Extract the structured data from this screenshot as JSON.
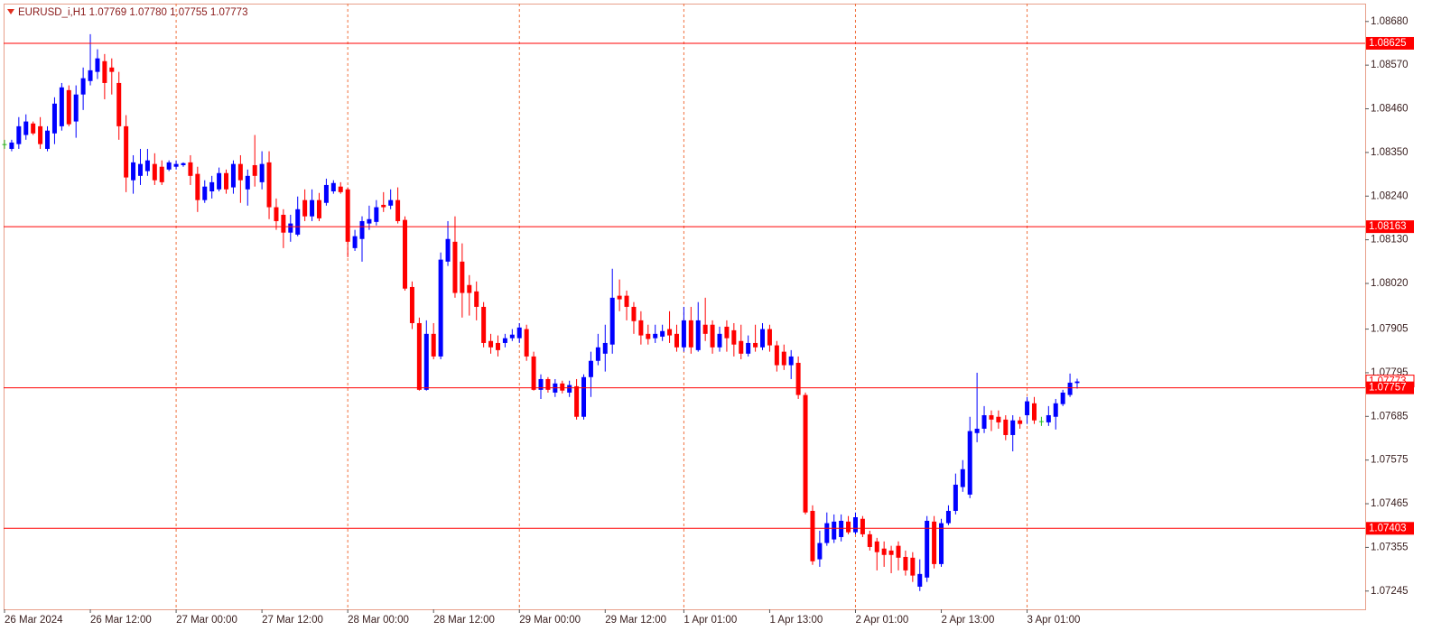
{
  "chart_data": {
    "type": "candlestick",
    "title": "EURUSD_i,H1  1.07769 1.07780 1.07755 1.07773",
    "categories": [
      "26 Mar 2024",
      null,
      null,
      null,
      null,
      null,
      null,
      null,
      null,
      null,
      null,
      null,
      "26 Mar 12:00",
      null,
      null,
      null,
      null,
      null,
      null,
      null,
      null,
      null,
      null,
      null,
      "27 Mar 00:00",
      null,
      null,
      null,
      null,
      null,
      null,
      null,
      null,
      null,
      null,
      null,
      "27 Mar 12:00",
      null,
      null,
      null,
      null,
      null,
      null,
      null,
      null,
      null,
      null,
      null,
      "28 Mar 00:00",
      null,
      null,
      null,
      null,
      null,
      null,
      null,
      null,
      null,
      null,
      null,
      "28 Mar 12:00",
      null,
      null,
      null,
      null,
      null,
      null,
      null,
      null,
      null,
      null,
      null,
      "29 Mar 00:00",
      null,
      null,
      null,
      null,
      null,
      null,
      null,
      null,
      null,
      null,
      null,
      "29 Mar 12:00",
      null,
      null,
      null,
      null,
      null,
      null,
      null,
      null,
      null,
      null,
      "1 Apr 01:00",
      null,
      null,
      null,
      null,
      null,
      null,
      null,
      null,
      null,
      null,
      null,
      "1 Apr 13:00",
      null,
      null,
      null,
      null,
      null,
      null,
      null,
      null,
      null,
      null,
      null,
      "2 Apr 01:00",
      null,
      null,
      null,
      null,
      null,
      null,
      null,
      null,
      null,
      null,
      null,
      "2 Apr 13:00",
      null,
      null,
      null,
      null,
      null,
      null,
      null,
      null,
      null,
      null,
      null,
      "3 Apr 01:00",
      null,
      null,
      null,
      null,
      null,
      null,
      null
    ],
    "open": [
      1.08371,
      1.08359,
      1.08371,
      1.08394,
      1.08423,
      1.08416,
      1.08359,
      1.08398,
      1.08416,
      1.08507,
      1.08428,
      1.08496,
      1.0853,
      1.08553,
      1.0858,
      1.08564,
      1.08525,
      1.08416,
      1.0828,
      1.08291,
      1.08303,
      1.08321,
      1.08314,
      1.08307,
      1.08314,
      1.08318,
      1.08325,
      1.08296,
      1.0823,
      1.08252,
      1.08257,
      1.08298,
      1.08262,
      1.08321,
      1.08257,
      1.08318,
      1.08275,
      1.08325,
      1.08212,
      1.08193,
      1.08148,
      1.08143,
      1.0823,
      1.08189,
      1.0823,
      1.08223,
      1.08252,
      1.08264,
      1.08257,
      1.08109,
      1.08132,
      1.08171,
      1.08175,
      1.08218,
      1.08216,
      1.0823,
      1.0818,
      1.08011,
      1.0792,
      1.07752,
      1.07893,
      1.07836,
      1.08075,
      1.08125,
      1.08075,
      1.08016,
      1.08,
      1.07961,
      1.07875,
      1.0787,
      1.0787,
      1.07882,
      1.07882,
      1.07905,
      1.07836,
      1.07752,
      1.07779,
      1.07745,
      1.07768,
      1.07745,
      1.07761,
      1.07684,
      1.07784,
      1.07825,
      1.07843,
      1.07866,
      1.07989,
      1.07989,
      1.07961,
      1.07927,
      1.07893,
      1.07882,
      1.07886,
      1.07905,
      1.07893,
      1.07859,
      1.07927,
      1.07852,
      1.07916,
      1.07916,
      1.07859,
      1.07911,
      1.07902,
      1.07875,
      1.07843,
      1.0787,
      1.07859,
      1.07905,
      1.07864,
      1.07848,
      1.07814,
      1.0782,
      1.07739,
      1.07447,
      1.07325,
      1.07366,
      1.07375,
      1.07381,
      1.0742,
      1.07393,
      1.07427,
      1.07388,
      1.0737,
      1.07352,
      1.07347,
      1.07359,
      1.07331,
      1.07329,
      1.07256,
      1.07279,
      1.0742,
      1.07313,
      1.07416,
      1.07447,
      1.07507,
      1.07488,
      1.07643,
      1.07654,
      1.07688,
      1.07684,
      1.07677,
      1.07638,
      1.07675,
      1.07688,
      1.07718,
      1.07673,
      1.0767,
      1.07684,
      1.07716,
      1.07739,
      1.07769
    ],
    "high": [
      1.08382,
      1.08382,
      1.08439,
      1.08446,
      1.08428,
      1.08439,
      1.08416,
      1.08489,
      1.08525,
      1.08519,
      1.08519,
      1.08564,
      1.08648,
      1.0861,
      1.08598,
      1.08587,
      1.08553,
      1.08444,
      1.08343,
      1.08359,
      1.08359,
      1.08348,
      1.0833,
      1.0833,
      1.0833,
      1.08325,
      1.08343,
      1.08314,
      1.0828,
      1.08291,
      1.08312,
      1.08307,
      1.0833,
      1.08343,
      1.08307,
      1.08394,
      1.08353,
      1.08353,
      1.08234,
      1.08207,
      1.08193,
      1.08239,
      1.08257,
      1.08257,
      1.08248,
      1.08284,
      1.0828,
      1.08275,
      1.08262,
      1.08155,
      1.08189,
      1.08216,
      1.0823,
      1.0825,
      1.08257,
      1.08262,
      1.08189,
      1.08025,
      1.07934,
      1.07927,
      1.0792,
      1.08098,
      1.08177,
      1.08189,
      1.08121,
      1.08041,
      1.08025,
      1.07973,
      1.07893,
      1.07889,
      1.07893,
      1.07905,
      1.0792,
      1.07916,
      1.07848,
      1.07791,
      1.07784,
      1.07779,
      1.07775,
      1.07775,
      1.07779,
      1.07791,
      1.07848,
      1.07893,
      1.07916,
      1.08057,
      1.0803,
      1.08002,
      1.07973,
      1.0795,
      1.07916,
      1.07916,
      1.07916,
      1.0795,
      1.07916,
      1.07961,
      1.07961,
      1.07973,
      1.07984,
      1.07927,
      1.07911,
      1.07927,
      1.0792,
      1.07916,
      1.07889,
      1.07916,
      1.0792,
      1.07916,
      1.07875,
      1.07866,
      1.07852,
      1.07836,
      1.07745,
      1.07461,
      1.07397,
      1.07443,
      1.07438,
      1.07438,
      1.07434,
      1.07443,
      1.07434,
      1.07397,
      1.07379,
      1.0737,
      1.07359,
      1.0737,
      1.07347,
      1.07343,
      1.07325,
      1.07434,
      1.07434,
      1.07427,
      1.07461,
      1.07541,
      1.07575,
      1.07684,
      1.07795,
      1.07711,
      1.077,
      1.077,
      1.07688,
      1.07688,
      1.07684,
      1.07734,
      1.07734,
      1.07684,
      1.07711,
      1.07729,
      1.07752,
      1.07793,
      1.0778
    ],
    "low": [
      1.08359,
      1.08353,
      1.08359,
      1.08382,
      1.08394,
      1.08359,
      1.08353,
      1.08371,
      1.08405,
      1.08416,
      1.08387,
      1.08457,
      1.08519,
      1.08535,
      1.08484,
      1.08496,
      1.08382,
      1.0825,
      1.08246,
      1.08268,
      1.08291,
      1.08268,
      1.08268,
      1.08303,
      1.08307,
      1.08314,
      1.08268,
      1.082,
      1.08223,
      1.08234,
      1.08252,
      1.08246,
      1.08246,
      1.08223,
      1.08216,
      1.08264,
      1.08257,
      1.08182,
      1.08155,
      1.08109,
      1.08125,
      1.08139,
      1.08177,
      1.08177,
      1.08177,
      1.08216,
      1.08246,
      1.08246,
      1.08086,
      1.08102,
      1.08075,
      1.08155,
      1.08166,
      1.082,
      1.08207,
      1.08171,
      1.08002,
      1.07905,
      1.0775,
      1.0775,
      1.07829,
      1.07829,
      1.08064,
      1.07984,
      1.07934,
      1.07939,
      1.07927,
      1.07859,
      1.07843,
      1.07836,
      1.07859,
      1.07875,
      1.0787,
      1.07825,
      1.0775,
      1.07729,
      1.07745,
      1.07734,
      1.07743,
      1.07734,
      1.07677,
      1.07677,
      1.07734,
      1.07814,
      1.07798,
      1.07843,
      1.0795,
      1.07927,
      1.07893,
      1.07866,
      1.07866,
      1.0787,
      1.07875,
      1.0787,
      1.07848,
      1.07848,
      1.07843,
      1.07848,
      1.07875,
      1.07843,
      1.07848,
      1.07848,
      1.07836,
      1.07829,
      1.07836,
      1.07848,
      1.07852,
      1.07848,
      1.07798,
      1.07802,
      1.07779,
      1.07729,
      1.07438,
      1.07311,
      1.07306,
      1.07359,
      1.07366,
      1.0737,
      1.07388,
      1.07388,
      1.07381,
      1.07347,
      1.07297,
      1.07306,
      1.0729,
      1.07297,
      1.07284,
      1.07268,
      1.07245,
      1.07268,
      1.07302,
      1.07306,
      1.07411,
      1.07438,
      1.07495,
      1.07479,
      1.0762,
      1.07643,
      1.07648,
      1.07654,
      1.07625,
      1.07597,
      1.07654,
      1.07666,
      1.07666,
      1.07661,
      1.07661,
      1.07652,
      1.07711,
      1.07734,
      1.07755
    ],
    "close": [
      1.08371,
      1.08375,
      1.08416,
      1.08428,
      1.08398,
      1.08371,
      1.08405,
      1.08473,
      1.08514,
      1.08421,
      1.08496,
      1.08537,
      1.08557,
      1.08587,
      1.08525,
      1.08553,
      1.08416,
      1.08287,
      1.08325,
      1.08321,
      1.0833,
      1.0828,
      1.08275,
      1.08325,
      1.08321,
      1.08323,
      1.08291,
      1.0823,
      1.08264,
      1.08275,
      1.08298,
      1.08257,
      1.08321,
      1.0828,
      1.08291,
      1.08291,
      1.08321,
      1.08212,
      1.08177,
      1.08148,
      1.08171,
      1.08207,
      1.08189,
      1.0823,
      1.08184,
      1.08268,
      1.08273,
      1.0825,
      1.08125,
      1.08139,
      1.08177,
      1.08182,
      1.08212,
      1.08212,
      1.0823,
      1.08177,
      1.08007,
      1.0792,
      1.07752,
      1.07893,
      1.07836,
      1.0808,
      1.08132,
      1.07996,
      1.07996,
      1.07996,
      1.07961,
      1.0787,
      1.07859,
      1.07852,
      1.07882,
      1.07891,
      1.07909,
      1.07836,
      1.07752,
      1.07779,
      1.07752,
      1.07768,
      1.0775,
      1.07764,
      1.07684,
      1.07784,
      1.07825,
      1.07859,
      1.0787,
      1.07984,
      1.0798,
      1.07961,
      1.07925,
      1.07889,
      1.0788,
      1.07893,
      1.079,
      1.07889,
      1.07859,
      1.07927,
      1.07859,
      1.07927,
      1.07893,
      1.07859,
      1.07893,
      1.07882,
      1.07866,
      1.07843,
      1.0787,
      1.07859,
      1.07905,
      1.07864,
      1.07814,
      1.07814,
      1.07836,
      1.07739,
      1.07443,
      1.0732,
      1.07366,
      1.07416,
      1.0742,
      1.07422,
      1.07393,
      1.07431,
      1.07388,
      1.07356,
      1.07343,
      1.07336,
      1.07336,
      1.07329,
      1.07297,
      1.07284,
      1.07288,
      1.07422,
      1.07313,
      1.07416,
      1.07447,
      1.07513,
      1.07552,
      1.07648,
      1.07654,
      1.07688,
      1.07677,
      1.0767,
      1.07638,
      1.07675,
      1.07666,
      1.07723,
      1.07675,
      1.07673,
      1.07688,
      1.07718,
      1.07745,
      1.0777,
      1.07773
    ],
    "up_color": "#0000ff",
    "down_color": "#ff0000",
    "doji_color": "#22bb22",
    "ylim": [
      1.07199,
      1.08725
    ],
    "yticks": [
      {
        "value": 1.0868,
        "label": "1.08680"
      },
      {
        "value": 1.0857,
        "label": "1.08570"
      },
      {
        "value": 1.0846,
        "label": "1.08460"
      },
      {
        "value": 1.0835,
        "label": "1.08350"
      },
      {
        "value": 1.0824,
        "label": "1.08240"
      },
      {
        "value": 1.0813,
        "label": "1.08130"
      },
      {
        "value": 1.0802,
        "label": "1.08020"
      },
      1.07905,
      1.07795,
      1.07685,
      1.07575,
      1.07465,
      1.07355,
      1.07245
    ],
    "hlines": [
      1.08625,
      1.08163,
      1.07757,
      1.07403
    ],
    "hline_color": "#ff0000",
    "grid": true,
    "grid_color": "#f0703c"
  }
}
